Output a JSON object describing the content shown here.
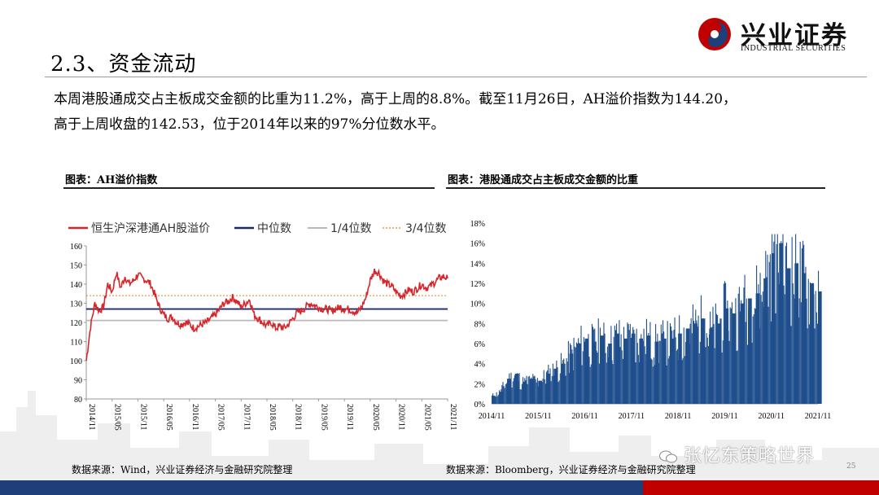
{
  "header": {
    "title": "2.3、资金流动",
    "logo_cn": "兴业证券",
    "logo_en": "INDUSTRIAL SECURITIES",
    "brand_red": "#c00000",
    "brand_blue": "#1f3f7a"
  },
  "body": {
    "line1": "本周港股通成交占主板成交金额的比重为11.2%，高于上周的8.8%。截至11月26日，AH溢价指数为144.20，",
    "line2": "高于上周收盘的142.53，位于2014年以来的97%分位数水平。"
  },
  "chart_left": {
    "caption": "图表：AH溢价指数",
    "source": "数据来源：Wind，兴业证券经济与金融研究院整理"
  },
  "chart_right": {
    "caption": "图表：港股通成交占主板成交金额的比重",
    "source": "数据来源：Bloomberg，兴业证券经济与金融研究院整理"
  },
  "watermark": "张忆东策略世界",
  "page_number": "25",
  "chart_data": [
    {
      "type": "line",
      "title": "",
      "series": [
        {
          "name": "恒生沪深港通AH股溢价",
          "color": "#d7262b",
          "x": [
            "2014-11",
            "2014-12",
            "2015-01",
            "2015-02",
            "2015-03",
            "2015-04",
            "2015-05",
            "2015-06",
            "2015-07",
            "2015-08",
            "2015-09",
            "2015-10",
            "2015-11",
            "2015-12",
            "2016-01",
            "2016-02",
            "2016-03",
            "2016-04",
            "2016-05",
            "2016-06",
            "2016-07",
            "2016-08",
            "2016-09",
            "2016-10",
            "2016-11",
            "2016-12",
            "2017-01",
            "2017-02",
            "2017-03",
            "2017-04",
            "2017-05",
            "2017-06",
            "2017-07",
            "2017-08",
            "2017-09",
            "2017-10",
            "2017-11",
            "2017-12",
            "2018-01",
            "2018-02",
            "2018-03",
            "2018-04",
            "2018-05",
            "2018-06",
            "2018-07",
            "2018-08",
            "2018-09",
            "2018-10",
            "2018-11",
            "2018-12",
            "2019-01",
            "2019-02",
            "2019-03",
            "2019-04",
            "2019-05",
            "2019-06",
            "2019-07",
            "2019-08",
            "2019-09",
            "2019-10",
            "2019-11",
            "2019-12",
            "2020-01",
            "2020-02",
            "2020-03",
            "2020-04",
            "2020-05",
            "2020-06",
            "2020-07",
            "2020-08",
            "2020-09",
            "2020-10",
            "2020-11",
            "2020-12",
            "2021-01",
            "2021-02",
            "2021-03",
            "2021-04",
            "2021-05",
            "2021-06",
            "2021-07",
            "2021-08",
            "2021-09",
            "2021-10",
            "2021-11"
          ],
          "values": [
            100,
            118,
            130,
            126,
            128,
            140,
            136,
            146,
            138,
            144,
            140,
            142,
            145,
            143,
            142,
            140,
            134,
            128,
            124,
            122,
            123,
            120,
            119,
            120,
            119,
            117,
            118,
            119,
            120,
            122,
            124,
            127,
            130,
            131,
            133,
            131,
            128,
            130,
            132,
            124,
            122,
            120,
            118,
            120,
            117,
            118,
            117,
            119,
            122,
            125,
            126,
            128,
            130,
            129,
            128,
            127,
            127,
            126,
            127,
            128,
            127,
            127,
            126,
            125,
            128,
            133,
            142,
            147,
            146,
            142,
            140,
            139,
            136,
            134,
            135,
            137,
            136,
            138,
            140,
            138,
            139,
            141,
            143,
            144,
            143
          ]
        },
        {
          "name": "中位数",
          "color": "#1b2a6b",
          "y": 127
        },
        {
          "name": "1/4位数",
          "color": "#b9b9b9",
          "y": 121
        },
        {
          "name": "3/4位数",
          "color": "#e69a4c",
          "style": "dotted",
          "y": 134
        }
      ],
      "ylim": [
        80,
        160
      ],
      "yticks": [
        80,
        90,
        100,
        110,
        120,
        130,
        140,
        150,
        160
      ],
      "xticks": [
        "2014/11",
        "2015/05",
        "2015/11",
        "2016/05",
        "2016/11",
        "2017/05",
        "2017/11",
        "2018/05",
        "2018/11",
        "2019/05",
        "2019/11",
        "2020/05",
        "2020/11",
        "2021/05",
        "2021/11"
      ],
      "legend": "top"
    },
    {
      "type": "bar",
      "title": "",
      "color": "#1f4e8c",
      "x": [
        "2014-11",
        "2015-01",
        "2015-03",
        "2015-05",
        "2015-07",
        "2015-09",
        "2015-11",
        "2016-01",
        "2016-03",
        "2016-05",
        "2016-07",
        "2016-09",
        "2016-11",
        "2017-01",
        "2017-03",
        "2017-05",
        "2017-07",
        "2017-09",
        "2017-11",
        "2018-01",
        "2018-03",
        "2018-05",
        "2018-07",
        "2018-09",
        "2018-11",
        "2019-01",
        "2019-03",
        "2019-05",
        "2019-07",
        "2019-09",
        "2019-11",
        "2020-01",
        "2020-03",
        "2020-05",
        "2020-07",
        "2020-09",
        "2020-11",
        "2021-01",
        "2021-03",
        "2021-05",
        "2021-07",
        "2021-09",
        "2021-11"
      ],
      "values": [
        0.8,
        1.2,
        2.5,
        3.0,
        2.2,
        2.5,
        2.3,
        3.0,
        3.5,
        4.0,
        5.0,
        6.0,
        6.5,
        6.2,
        6.8,
        6.0,
        7.0,
        6.5,
        7.0,
        6.5,
        6.8,
        6.2,
        6.5,
        6.5,
        7.0,
        7.5,
        8.0,
        8.5,
        7.5,
        8.0,
        9.5,
        9.0,
        10.0,
        10.5,
        11.0,
        12.5,
        15.0,
        16.0,
        13.5,
        14.0,
        13.0,
        12.0,
        11.2
      ],
      "ylim": [
        0,
        18
      ],
      "yticks": [
        "0%",
        "2%",
        "4%",
        "6%",
        "8%",
        "10%",
        "12%",
        "14%",
        "16%",
        "18%"
      ],
      "xticks": [
        "2014/11",
        "2015/11",
        "2016/11",
        "2017/11",
        "2018/11",
        "2019/11",
        "2020/11",
        "2021/11"
      ]
    }
  ]
}
